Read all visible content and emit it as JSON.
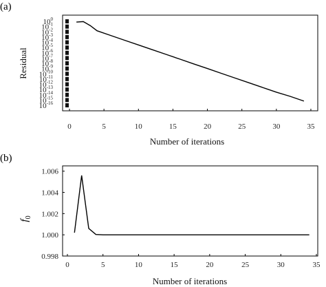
{
  "chart_data": [
    {
      "panel_label": "(a)",
      "type": "line",
      "xlabel": "Number of iterations",
      "ylabel": "Residual",
      "yscale": "log",
      "xlim": [
        -1,
        36
      ],
      "ylim_exponent": [
        -16,
        0
      ],
      "x_ticks": [
        0,
        5,
        10,
        15,
        20,
        25,
        30,
        35
      ],
      "x_tick_labels": [
        "0",
        "5",
        "10",
        "15",
        "20",
        "25",
        "30",
        "35"
      ],
      "y_tick_exponents": [
        0,
        -1,
        -2,
        -3,
        -4,
        -5,
        -6,
        -7,
        -8,
        -9,
        -10,
        -11,
        -12,
        -13,
        -14,
        -15,
        -16
      ],
      "y_tick_base": "10",
      "series": [
        {
          "x": [
            1,
            2,
            3,
            4,
            6,
            8,
            10,
            12,
            14,
            16,
            18,
            20,
            22,
            24,
            26,
            28,
            30,
            32,
            34
          ],
          "log10_y": [
            -0.15,
            -0.05,
            -0.8,
            -1.8,
            -2.7,
            -3.6,
            -4.5,
            -5.4,
            -6.3,
            -7.2,
            -8.1,
            -9.0,
            -9.9,
            -10.8,
            -11.7,
            -12.6,
            -13.5,
            -14.3,
            -15.2
          ]
        }
      ],
      "grid": false
    },
    {
      "panel_label": "(b)",
      "type": "line",
      "xlabel": "Number of iterations",
      "ylabel": "f",
      "ylabel_subscript": "0",
      "xlim": [
        0,
        35
      ],
      "ylim": [
        0.998,
        1.0065
      ],
      "x_ticks": [
        0,
        5,
        10,
        15,
        20,
        25,
        30,
        35
      ],
      "x_tick_labels": [
        "0",
        "5",
        "10",
        "15",
        "20",
        "25",
        "30",
        "35"
      ],
      "y_ticks": [
        0.998,
        1.0,
        1.002,
        1.004,
        1.006
      ],
      "y_tick_labels": [
        "0.998",
        "1.000",
        "1.002",
        "1.004",
        "1.006"
      ],
      "series": [
        {
          "x": [
            1,
            2,
            3,
            4,
            5,
            6,
            34
          ],
          "y": [
            1.0002,
            1.0056,
            1.0006,
            1.00003,
            1.0,
            1.0,
            1.0
          ]
        }
      ],
      "grid": false
    }
  ]
}
